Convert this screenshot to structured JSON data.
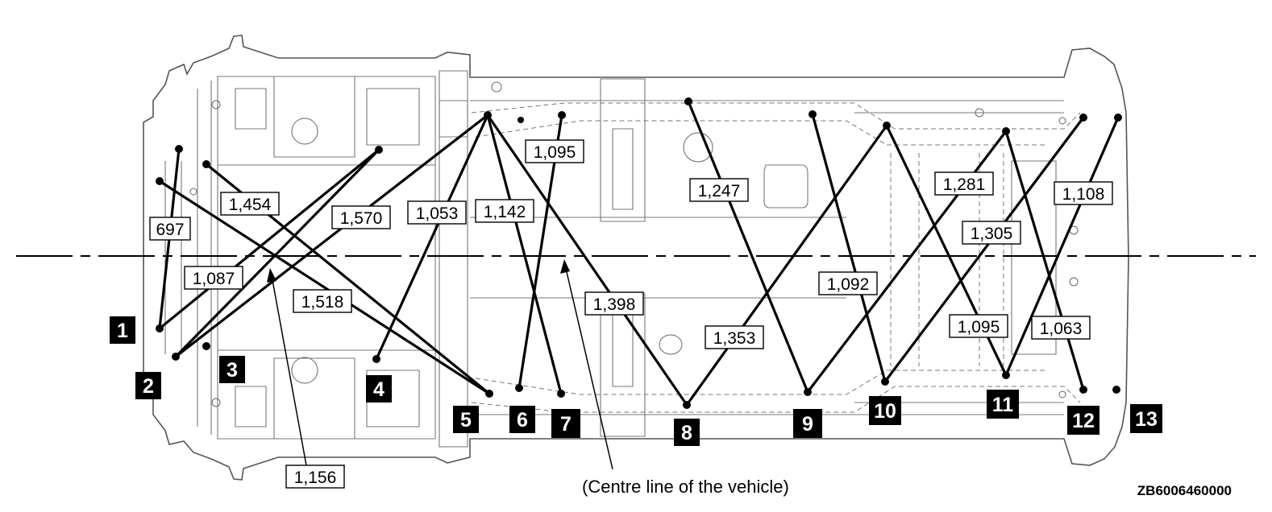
{
  "diagram": {
    "points": [
      {
        "id": "1",
        "label": "1"
      },
      {
        "id": "2",
        "label": "2"
      },
      {
        "id": "3",
        "label": "3"
      },
      {
        "id": "4",
        "label": "4"
      },
      {
        "id": "5",
        "label": "5"
      },
      {
        "id": "6",
        "label": "6"
      },
      {
        "id": "7",
        "label": "7"
      },
      {
        "id": "8",
        "label": "8"
      },
      {
        "id": "9",
        "label": "9"
      },
      {
        "id": "10",
        "label": "10"
      },
      {
        "id": "11",
        "label": "11"
      },
      {
        "id": "12",
        "label": "12"
      },
      {
        "id": "13",
        "label": "13"
      }
    ],
    "measurements": [
      {
        "value": "697"
      },
      {
        "value": "1,087"
      },
      {
        "value": "1,454"
      },
      {
        "value": "1,518"
      },
      {
        "value": "1,570"
      },
      {
        "value": "1,156"
      },
      {
        "value": "1,053"
      },
      {
        "value": "1,142"
      },
      {
        "value": "1,095"
      },
      {
        "value": "1,398"
      },
      {
        "value": "1,247"
      },
      {
        "value": "1,353"
      },
      {
        "value": "1,092"
      },
      {
        "value": "1,281"
      },
      {
        "value": "1,305"
      },
      {
        "value": "1,095"
      },
      {
        "value": "1,108"
      },
      {
        "value": "1,063"
      }
    ],
    "centre_line_caption": "(Centre line of the vehicle)",
    "code": "ZB6006460000"
  }
}
